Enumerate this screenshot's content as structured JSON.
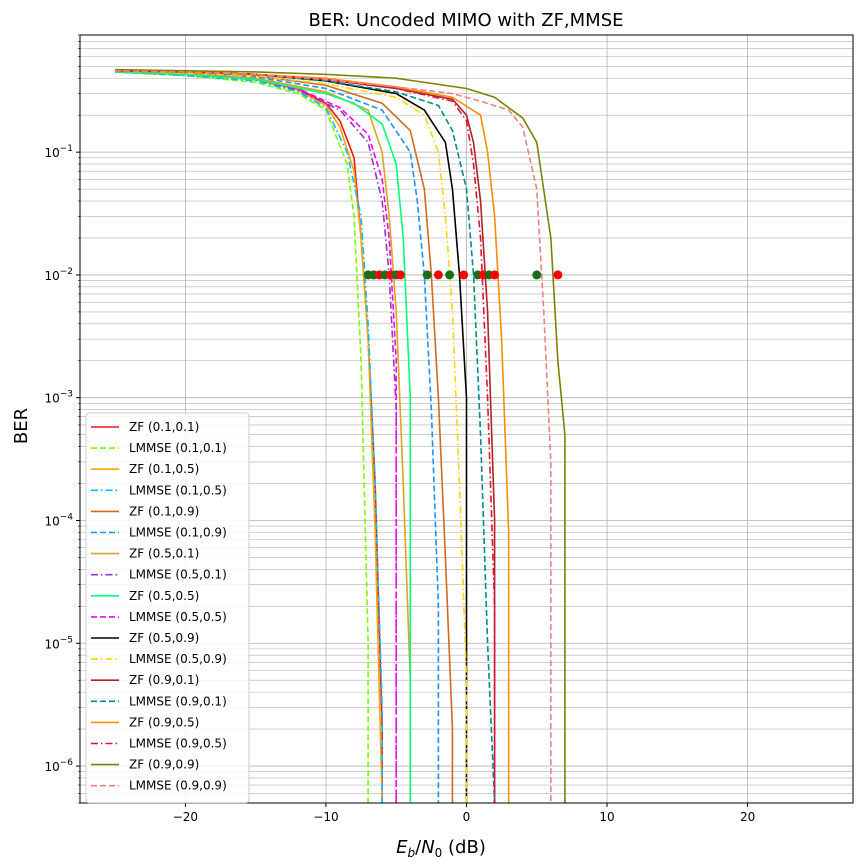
{
  "chart_data": {
    "type": "line",
    "title": "BER: Uncoded MIMO with ZF,MMSE",
    "xlabel": "E_b/N_0 (dB)",
    "xlabel_parts": {
      "e": "E",
      "b": "b",
      "slash": "/",
      "n": "N",
      "zero": "0",
      "unit": " (dB)"
    },
    "ylabel": "BER",
    "x_scale": "linear",
    "y_scale": "log",
    "xlim": [
      -27.5,
      27.5
    ],
    "ylim": [
      5e-07,
      0.9
    ],
    "grid": true,
    "legend_position": "lower left",
    "x_ticks": [
      -20,
      -10,
      0,
      10,
      20
    ],
    "x_tick_labels": [
      "−20",
      "−10",
      "0",
      "10",
      "20"
    ],
    "y_ticks": [
      1e-06,
      1e-05,
      0.0001,
      0.001,
      0.01,
      0.1
    ],
    "y_tick_labels": [
      {
        "base": "10",
        "exp": "−6"
      },
      {
        "base": "10",
        "exp": "−5"
      },
      {
        "base": "10",
        "exp": "−4"
      },
      {
        "base": "10",
        "exp": "−3"
      },
      {
        "base": "10",
        "exp": "−2"
      },
      {
        "base": "10",
        "exp": "−1"
      }
    ],
    "series": [
      {
        "name": "ZF (0.1,0.1)",
        "color": "#e41a1c",
        "dash": "solid",
        "points": [
          [
            -25,
            0.45
          ],
          [
            -20,
            0.43
          ],
          [
            -15,
            0.39
          ],
          [
            -12,
            0.33
          ],
          [
            -10,
            0.25
          ],
          [
            -9,
            0.18
          ],
          [
            -8,
            0.09
          ],
          [
            -7.5,
            0.02
          ],
          [
            -7,
            0.003
          ],
          [
            -6.5,
            0.0002
          ],
          [
            -6,
            2e-06
          ],
          [
            -6,
            5e-07
          ]
        ]
      },
      {
        "name": "LMMSE (0.1,0.1)",
        "color": "#7cfc00",
        "dash": "dashed",
        "points": [
          [
            -25,
            0.45
          ],
          [
            -20,
            0.42
          ],
          [
            -15,
            0.37
          ],
          [
            -12,
            0.3
          ],
          [
            -10,
            0.22
          ],
          [
            -8.5,
            0.08
          ],
          [
            -8,
            0.03
          ],
          [
            -7.5,
            0.002
          ],
          [
            -7,
            1e-05
          ],
          [
            -7,
            5e-07
          ]
        ]
      },
      {
        "name": "ZF (0.1,0.5)",
        "color": "#ffa500",
        "dash": "solid",
        "points": [
          [
            -25,
            0.45
          ],
          [
            -20,
            0.43
          ],
          [
            -15,
            0.39
          ],
          [
            -12,
            0.32
          ],
          [
            -10,
            0.24
          ],
          [
            -9,
            0.16
          ],
          [
            -8,
            0.07
          ],
          [
            -7.5,
            0.02
          ],
          [
            -7,
            0.003
          ],
          [
            -6.5,
            8e-05
          ],
          [
            -6,
            5e-07
          ]
        ]
      },
      {
        "name": "LMMSE (0.1,0.5)",
        "color": "#00bfff",
        "dash": "dashdot",
        "points": [
          [
            -25,
            0.45
          ],
          [
            -20,
            0.42
          ],
          [
            -15,
            0.38
          ],
          [
            -12,
            0.31
          ],
          [
            -10,
            0.23
          ],
          [
            -8.5,
            0.1
          ],
          [
            -7.5,
            0.03
          ],
          [
            -7,
            0.004
          ],
          [
            -6.5,
            0.0002
          ],
          [
            -6,
            3e-06
          ],
          [
            -6,
            5e-07
          ]
        ]
      },
      {
        "name": "ZF (0.1,0.9)",
        "color": "#d2691e",
        "dash": "solid",
        "points": [
          [
            -25,
            0.46
          ],
          [
            -20,
            0.45
          ],
          [
            -15,
            0.42
          ],
          [
            -10,
            0.35
          ],
          [
            -6,
            0.25
          ],
          [
            -4,
            0.15
          ],
          [
            -3,
            0.05
          ],
          [
            -2.5,
            0.01
          ],
          [
            -2,
            0.001
          ],
          [
            -1.5,
            5e-05
          ],
          [
            -1,
            2e-06
          ],
          [
            -1,
            5e-07
          ]
        ]
      },
      {
        "name": "LMMSE (0.1,0.9)",
        "color": "#1e90ff",
        "dash": "dashed",
        "points": [
          [
            -25,
            0.46
          ],
          [
            -20,
            0.44
          ],
          [
            -15,
            0.41
          ],
          [
            -10,
            0.33
          ],
          [
            -6,
            0.22
          ],
          [
            -4,
            0.1
          ],
          [
            -3.5,
            0.04
          ],
          [
            -3,
            0.01
          ],
          [
            -2.5,
            0.0008
          ],
          [
            -2,
            2e-05
          ],
          [
            -2,
            5e-07
          ]
        ]
      },
      {
        "name": "ZF (0.5,0.1)",
        "color": "#daa520",
        "dash": "solid",
        "points": [
          [
            -25,
            0.46
          ],
          [
            -20,
            0.44
          ],
          [
            -15,
            0.4
          ],
          [
            -10,
            0.31
          ],
          [
            -7,
            0.22
          ],
          [
            -6,
            0.1
          ],
          [
            -5.5,
            0.03
          ],
          [
            -5,
            0.005
          ],
          [
            -4.5,
            0.0002
          ],
          [
            -4,
            5e-06
          ],
          [
            -4,
            5e-07
          ]
        ]
      },
      {
        "name": "LMMSE (0.5,0.1)",
        "color": "#9932cc",
        "dash": "dashdot",
        "points": [
          [
            -25,
            0.45
          ],
          [
            -20,
            0.43
          ],
          [
            -15,
            0.39
          ],
          [
            -12,
            0.32
          ],
          [
            -9,
            0.22
          ],
          [
            -7,
            0.12
          ],
          [
            -6,
            0.04
          ],
          [
            -5.5,
            0.01
          ],
          [
            -5,
            0.0008
          ],
          [
            -5,
            5e-07
          ]
        ]
      },
      {
        "name": "LMMSE (0.5,0.5)",
        "color": "#ff00ff",
        "dash": "dashed",
        "points": [
          [
            -25,
            0.45
          ],
          [
            -20,
            0.43
          ],
          [
            -15,
            0.39
          ],
          [
            -12,
            0.33
          ],
          [
            -9,
            0.23
          ],
          [
            -7,
            0.14
          ],
          [
            -6,
            0.06
          ],
          [
            -5.5,
            0.02
          ],
          [
            -5,
            0.002
          ],
          [
            -5,
            5e-07
          ]
        ]
      },
      {
        "name": "ZF (0.5,0.5)",
        "color": "#00ff7f",
        "dash": "solid",
        "points": [
          [
            -25,
            0.45
          ],
          [
            -20,
            0.43
          ],
          [
            -15,
            0.39
          ],
          [
            -10,
            0.3
          ],
          [
            -8,
            0.25
          ],
          [
            -6,
            0.17
          ],
          [
            -5,
            0.08
          ],
          [
            -4.5,
            0.02
          ],
          [
            -4,
            0.001
          ],
          [
            -4,
            5e-07
          ]
        ]
      },
      {
        "name": "ZF (0.5,0.9)",
        "color": "#000000",
        "dash": "solid",
        "points": [
          [
            -25,
            0.46
          ],
          [
            -20,
            0.45
          ],
          [
            -15,
            0.43
          ],
          [
            -10,
            0.38
          ],
          [
            -5,
            0.3
          ],
          [
            -3,
            0.22
          ],
          [
            -1.5,
            0.12
          ],
          [
            -1,
            0.05
          ],
          [
            -0.5,
            0.01
          ],
          [
            0,
            0.001
          ],
          [
            0,
            5e-07
          ]
        ]
      },
      {
        "name": "LMMSE (0.5,0.9)",
        "color": "#ffd700",
        "dash": "dashdot",
        "points": [
          [
            -25,
            0.46
          ],
          [
            -20,
            0.44
          ],
          [
            -15,
            0.42
          ],
          [
            -10,
            0.36
          ],
          [
            -5,
            0.28
          ],
          [
            -3,
            0.2
          ],
          [
            -2,
            0.1
          ],
          [
            -1.5,
            0.03
          ],
          [
            -1,
            0.005
          ],
          [
            -0.5,
            0.0002
          ],
          [
            0,
            5e-06
          ],
          [
            0,
            5e-07
          ]
        ]
      },
      {
        "name": "ZF (0.9,0.1)",
        "color": "#b22222",
        "dash": "solid",
        "points": [
          [
            -25,
            0.46
          ],
          [
            -20,
            0.45
          ],
          [
            -15,
            0.43
          ],
          [
            -10,
            0.39
          ],
          [
            -5,
            0.33
          ],
          [
            -1,
            0.27
          ],
          [
            0,
            0.2
          ],
          [
            0.5,
            0.12
          ],
          [
            1,
            0.04
          ],
          [
            1.5,
            0.005
          ],
          [
            2,
            0.0001
          ],
          [
            2,
            5e-07
          ]
        ]
      },
      {
        "name": "LMMSE (0.9,0.1)",
        "color": "#008b8b",
        "dash": "dashed",
        "points": [
          [
            -25,
            0.46
          ],
          [
            -20,
            0.45
          ],
          [
            -15,
            0.43
          ],
          [
            -10,
            0.38
          ],
          [
            -5,
            0.31
          ],
          [
            -2,
            0.24
          ],
          [
            -1,
            0.15
          ],
          [
            0,
            0.05
          ],
          [
            0.5,
            0.01
          ],
          [
            1,
            0.0005
          ],
          [
            1.5,
            1e-05
          ],
          [
            2,
            5e-07
          ]
        ]
      },
      {
        "name": "ZF (0.9,0.5)",
        "color": "#ff8c00",
        "dash": "solid",
        "points": [
          [
            -25,
            0.46
          ],
          [
            -20,
            0.45
          ],
          [
            -15,
            0.43
          ],
          [
            -10,
            0.4
          ],
          [
            -5,
            0.34
          ],
          [
            -1,
            0.28
          ],
          [
            1,
            0.2
          ],
          [
            1.5,
            0.1
          ],
          [
            2,
            0.03
          ],
          [
            2.5,
            0.003
          ],
          [
            3,
            8e-05
          ],
          [
            3,
            5e-07
          ]
        ]
      },
      {
        "name": "LMMSE (0.9,0.5)",
        "color": "#dc143c",
        "dash": "dashdot",
        "points": [
          [
            -25,
            0.46
          ],
          [
            -20,
            0.45
          ],
          [
            -15,
            0.43
          ],
          [
            -10,
            0.39
          ],
          [
            -5,
            0.33
          ],
          [
            -1,
            0.26
          ],
          [
            0,
            0.18
          ],
          [
            0.5,
            0.08
          ],
          [
            1,
            0.02
          ],
          [
            1.5,
            0.001
          ],
          [
            2,
            2e-05
          ],
          [
            2,
            5e-07
          ]
        ]
      },
      {
        "name": "ZF (0.9,0.9)",
        "color": "#808000",
        "dash": "solid",
        "points": [
          [
            -25,
            0.47
          ],
          [
            -20,
            0.46
          ],
          [
            -15,
            0.45
          ],
          [
            -10,
            0.43
          ],
          [
            -5,
            0.4
          ],
          [
            0,
            0.33
          ],
          [
            2,
            0.28
          ],
          [
            3,
            0.23
          ],
          [
            4,
            0.19
          ],
          [
            5,
            0.12
          ],
          [
            6,
            0.02
          ],
          [
            6.5,
            0.002
          ],
          [
            7,
            0.0005
          ],
          [
            7,
            5e-07
          ]
        ]
      },
      {
        "name": "LMMSE (0.9,0.9)",
        "color": "#f08080",
        "dash": "dashed",
        "points": [
          [
            -25,
            0.46
          ],
          [
            -20,
            0.45
          ],
          [
            -15,
            0.43
          ],
          [
            -10,
            0.39
          ],
          [
            -5,
            0.34
          ],
          [
            -1,
            0.3
          ],
          [
            1,
            0.26
          ],
          [
            3,
            0.22
          ],
          [
            4,
            0.16
          ],
          [
            5,
            0.05
          ],
          [
            5.5,
            0.005
          ],
          [
            6,
            0.0003
          ],
          [
            6,
            5e-07
          ]
        ]
      }
    ],
    "markers": [
      {
        "x": -7.0,
        "y": 0.01,
        "color": "#1a6e1a"
      },
      {
        "x": -6.6,
        "y": 0.01,
        "color": "#1a6e1a"
      },
      {
        "x": -6.2,
        "y": 0.01,
        "color": "#ff0000"
      },
      {
        "x": -5.8,
        "y": 0.01,
        "color": "#1a6e1a"
      },
      {
        "x": -5.4,
        "y": 0.01,
        "color": "#ff0000"
      },
      {
        "x": -5.0,
        "y": 0.01,
        "color": "#1a6e1a"
      },
      {
        "x": -4.7,
        "y": 0.01,
        "color": "#ff0000"
      },
      {
        "x": -2.8,
        "y": 0.01,
        "color": "#1a6e1a"
      },
      {
        "x": -2.0,
        "y": 0.01,
        "color": "#ff0000"
      },
      {
        "x": -1.2,
        "y": 0.01,
        "color": "#1a6e1a"
      },
      {
        "x": -0.2,
        "y": 0.01,
        "color": "#ff0000"
      },
      {
        "x": 0.8,
        "y": 0.01,
        "color": "#1a6e1a"
      },
      {
        "x": 1.2,
        "y": 0.01,
        "color": "#ff0000"
      },
      {
        "x": 1.6,
        "y": 0.01,
        "color": "#1a6e1a"
      },
      {
        "x": 2.0,
        "y": 0.01,
        "color": "#ff0000"
      },
      {
        "x": 5.0,
        "y": 0.01,
        "color": "#1a6e1a"
      },
      {
        "x": 6.5,
        "y": 0.01,
        "color": "#ff0000"
      }
    ],
    "legend_order": [
      0,
      1,
      2,
      3,
      4,
      5,
      6,
      7,
      9,
      8,
      10,
      11,
      12,
      13,
      14,
      15,
      16,
      17
    ]
  }
}
